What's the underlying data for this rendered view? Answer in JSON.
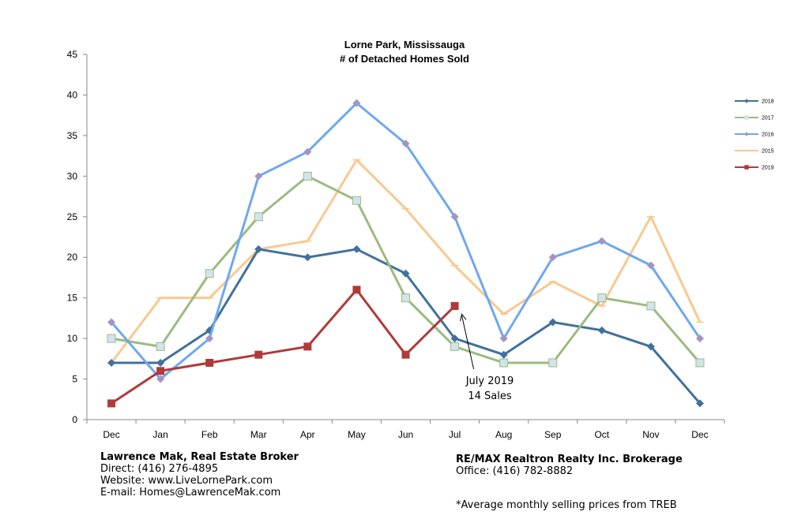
{
  "chart_data": {
    "type": "line",
    "title": "Lorne Park, Mississauga",
    "subtitle": "# of Detached Homes Sold",
    "categories": [
      "Dec",
      "Jan",
      "Feb",
      "Mar",
      "Apr",
      "May",
      "Jun",
      "Jul",
      "Aug",
      "Sep",
      "Oct",
      "Nov",
      "Dec"
    ],
    "y_ticks": [
      "0",
      "5",
      "10",
      "15",
      "20",
      "25",
      "30",
      "35",
      "40",
      "45"
    ],
    "ylim": [
      0,
      45
    ],
    "grid": false,
    "legend_position": "right",
    "series": [
      {
        "name": "2018",
        "color": "#41719C",
        "marker": "diamond",
        "values": [
          7,
          7,
          11,
          21,
          20,
          21,
          18,
          10,
          8,
          12,
          11,
          9,
          2
        ]
      },
      {
        "name": "2017",
        "color": "#9BBB80",
        "marker": "square",
        "values": [
          10,
          9,
          18,
          25,
          30,
          27,
          15,
          9,
          7,
          7,
          15,
          14,
          7
        ]
      },
      {
        "name": "2016",
        "color": "#6EA8F0",
        "marker": "diamond",
        "values": [
          12,
          5,
          10,
          30,
          33,
          39,
          34,
          25,
          10,
          20,
          22,
          19,
          10
        ]
      },
      {
        "name": "2015",
        "color": "#FAC890",
        "marker": "dash",
        "values": [
          7,
          15,
          15,
          21,
          22,
          32,
          26,
          19,
          13,
          17,
          14,
          25,
          12
        ]
      },
      {
        "name": "2019",
        "color": "#B03A3A",
        "marker": "square",
        "values": [
          2,
          6,
          7,
          8,
          9,
          16,
          8,
          14,
          null,
          null,
          null,
          null,
          null
        ]
      }
    ],
    "annotation": {
      "lines": [
        "July 2019",
        "14 Sales"
      ],
      "target_category_index": 7,
      "target_value": 13
    }
  },
  "footer": {
    "left": {
      "name": "Lawrence Mak, Real Estate Broker",
      "direct": "Direct:  (416) 276-4895",
      "website": "Website:  www.LiveLornePark.com",
      "email": "E-mail:  Homes@LawrenceMak.com"
    },
    "right": {
      "brokerage": "RE/MAX Realtron Realty Inc. Brokerage",
      "office": "Office: (416) 782-8882"
    },
    "note": "*Average monthly selling prices from TREB"
  }
}
